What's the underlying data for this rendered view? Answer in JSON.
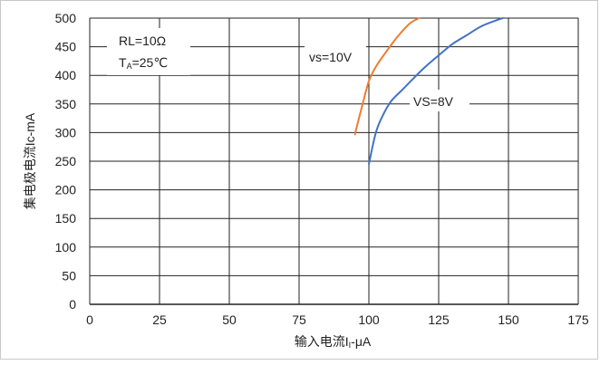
{
  "chart_data": {
    "type": "line",
    "title": "",
    "xlabel": "输入电流I",
    "xlabel_sub": "I",
    "xlabel_tail": "-μA",
    "ylabel": "集电极电流Ic-mA",
    "xlim": [
      0,
      175
    ],
    "ylim": [
      0,
      500
    ],
    "xticks": [
      "0",
      "25",
      "50",
      "75",
      "100",
      "125",
      "150",
      "175"
    ],
    "yticks": [
      "0",
      "50",
      "100",
      "150",
      "200",
      "250",
      "300",
      "350",
      "400",
      "450",
      "500"
    ],
    "grid": true,
    "annotation_box": {
      "line1": "RL=10Ω",
      "line2_main": "T",
      "line2_sub": "A",
      "line2_tail": "=25℃"
    },
    "series": [
      {
        "name": "VS=10V",
        "color": "#ED7D31",
        "x": [
          95,
          97.5,
          100,
          102.5,
          105,
          107.5,
          110,
          112.5,
          115,
          118
        ],
        "y": [
          297,
          345,
          390,
          415,
          433,
          450,
          466,
          480,
          492,
          500
        ]
      },
      {
        "name": "VS=8V",
        "color": "#4472C4",
        "x": [
          100,
          102.5,
          105,
          108,
          112,
          116,
          120,
          125,
          130,
          135,
          140,
          145,
          148
        ],
        "y": [
          245,
          300,
          330,
          355,
          375,
          395,
          414,
          435,
          455,
          470,
          485,
          495,
          500
        ]
      }
    ],
    "series_labels": [
      "vs=10V",
      "VS=8V"
    ]
  }
}
